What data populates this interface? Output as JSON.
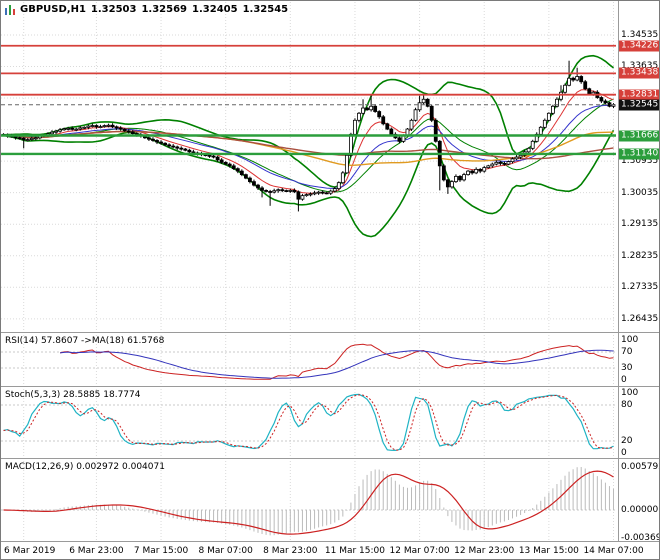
{
  "header": {
    "symbol": "GBPUSD,H1",
    "open": "1.32503",
    "high": "1.32569",
    "low": "1.32405",
    "close": "1.32545"
  },
  "indicator_labels": {
    "rsi": "RSI(14) 57.8607 ->MA(18) 61.5768",
    "stoch": "Stoch(5,3,3) 28.5885 18.7774",
    "macd": "MACD(12,26,9) 0.002972 0.004071"
  },
  "price_scale": {
    "ticks": [
      {
        "price": 1.34535,
        "label": "1.34535"
      },
      {
        "price": 1.33635,
        "label": "1.33635"
      },
      {
        "price": 1.30935,
        "label": "1.30935"
      },
      {
        "price": 1.30035,
        "label": "1.30035"
      },
      {
        "price": 1.29135,
        "label": "1.29135"
      },
      {
        "price": 1.28235,
        "label": "1.28235"
      },
      {
        "price": 1.27335,
        "label": "1.27335"
      },
      {
        "price": 1.26435,
        "label": "1.26435"
      }
    ],
    "hidden_grid": [
      1.32735,
      1.31835
    ],
    "badges": [
      {
        "price": 1.34226,
        "label": "1.34226",
        "role": "resistance"
      },
      {
        "price": 1.33438,
        "label": "1.33438",
        "role": "resistance"
      },
      {
        "price": 1.32831,
        "label": "1.32831",
        "role": "resistance"
      },
      {
        "price": 1.32545,
        "label": "1.32545",
        "role": "current"
      },
      {
        "price": 1.31666,
        "label": "1.31666",
        "role": "support"
      },
      {
        "price": 1.3114,
        "label": "1.31140",
        "role": "support"
      }
    ]
  },
  "indicator_scales": {
    "rsi": [
      "100",
      "70",
      "30",
      "0"
    ],
    "stoch": [
      "100",
      "80",
      "20",
      "0"
    ],
    "macd": [
      "0.005792",
      "0.00000",
      "-0.003698"
    ]
  },
  "time_axis": [
    {
      "i": 5,
      "label": "6 Mar 2019"
    },
    {
      "i": 23,
      "label": "6 Mar 23:00"
    },
    {
      "i": 39,
      "label": "7 Mar 15:00"
    },
    {
      "i": 55,
      "label": "8 Mar 07:00"
    },
    {
      "i": 71,
      "label": "8 Mar 23:00"
    },
    {
      "i": 87,
      "label": "11 Mar 15:00"
    },
    {
      "i": 103,
      "label": "12 Mar 07:00"
    },
    {
      "i": 119,
      "label": "12 Mar 23:00"
    },
    {
      "i": 135,
      "label": "13 Mar 15:00"
    },
    {
      "i": 151,
      "label": "14 Mar 07:00"
    }
  ],
  "colors": {
    "resistance": "#d6403a",
    "support": "#2b9e3c",
    "current_badge": "#111111",
    "bollinger": "#008000",
    "candle": "#000000",
    "grid": "#dadada",
    "rsi": "#cc2222",
    "rsi_ma": "#3333bb",
    "stoch_k": "#1fb3c4",
    "stoch_d": "#cc2222",
    "macd_hist": "#bbbbbb",
    "macd_signal": "#cc2222",
    "ma_fast": "#dd3333",
    "ma_mid": "#3333cc",
    "ma_slow1": "#e09a20",
    "ma_slow2": "#aa5040"
  },
  "chart_data": {
    "type": "candlestick",
    "title": "GBPUSD,H1",
    "timeframe": "H1",
    "ohlc_current": {
      "open": 1.32503,
      "high": 1.32569,
      "low": 1.32405,
      "close": 1.32545
    },
    "y_range": [
      1.2606,
      1.35475
    ],
    "first_open": 1.317,
    "closes": [
      1.3168,
      1.31655,
      1.3164,
      1.31605,
      1.3159,
      1.31545,
      1.3155,
      1.31585,
      1.316,
      1.3165,
      1.3168,
      1.31715,
      1.3176,
      1.3179,
      1.3183,
      1.3186,
      1.3187,
      1.31845,
      1.3185,
      1.31885,
      1.319,
      1.31935,
      1.3195,
      1.31915,
      1.3192,
      1.3195,
      1.3196,
      1.31915,
      1.3188,
      1.31845,
      1.318,
      1.3177,
      1.3172,
      1.3169,
      1.3165,
      1.316,
      1.3156,
      1.31525,
      1.3148,
      1.31445,
      1.314,
      1.31365,
      1.3134,
      1.31305,
      1.3128,
      1.31245,
      1.312,
      1.3117,
      1.3115,
      1.3112,
      1.311,
      1.3108,
      1.3105,
      1.3097,
      1.309,
      1.3085,
      1.308,
      1.3072,
      1.3065,
      1.3055,
      1.3045,
      1.3035,
      1.3025,
      1.3017,
      1.301,
      1.3007,
      1.3005,
      1.3009,
      1.3012,
      1.30095,
      1.3008,
      1.301,
      1.3006,
      1.2985,
      1.2995,
      1.2998,
      1.3,
      1.3003,
      1.3005,
      1.3003,
      1.3002,
      1.3008,
      1.3015,
      1.3032,
      1.306,
      1.311,
      1.317,
      1.321,
      1.323,
      1.3245,
      1.324,
      1.325,
      1.3235,
      1.322,
      1.32,
      1.3185,
      1.317,
      1.316,
      1.315,
      1.3165,
      1.3185,
      1.321,
      1.324,
      1.326,
      1.327,
      1.325,
      1.321,
      1.315,
      1.308,
      1.304,
      1.302,
      1.3035,
      1.305,
      1.304,
      1.3055,
      1.3065,
      1.306,
      1.307,
      1.3065,
      1.3075,
      1.308,
      1.3085,
      1.309,
      1.3087,
      1.3085,
      1.3092,
      1.31,
      1.3105,
      1.311,
      1.312,
      1.313,
      1.315,
      1.317,
      1.319,
      1.321,
      1.323,
      1.325,
      1.327,
      1.329,
      1.331,
      1.333,
      1.3325,
      1.3335,
      1.332,
      1.33,
      1.3285,
      1.329,
      1.3275,
      1.3265,
      1.326,
      1.325,
      1.32545
    ],
    "wicks": {
      "5": {
        "low": 1.313
      },
      "64": {
        "low": 1.299
      },
      "66": {
        "low": 1.2966
      },
      "73": {
        "low": 1.295
      },
      "89": {
        "high": 1.327
      },
      "91": {
        "high": 1.3285
      },
      "103": {
        "high": 1.328
      },
      "104": {
        "high": 1.3283
      },
      "108": {
        "low": 1.301
      },
      "110": {
        "low": 1.3
      },
      "138": {
        "high": 1.331
      },
      "140": {
        "high": 1.338
      },
      "142": {
        "high": 1.336
      }
    },
    "horizontal_lines": [
      {
        "price": 1.34226,
        "role": "resistance"
      },
      {
        "price": 1.33438,
        "role": "resistance"
      },
      {
        "price": 1.32831,
        "role": "resistance"
      },
      {
        "price": 1.31666,
        "role": "support"
      },
      {
        "price": 1.3114,
        "role": "support"
      }
    ],
    "current_price": 1.32545,
    "rsi_levels": [
      70,
      30
    ],
    "stoch_levels": [
      80,
      20
    ],
    "indicators": {
      "bollinger": {
        "period": 20,
        "deviation": 2
      },
      "moving_averages": [
        {
          "type": "ema",
          "period": 8,
          "color_key": "ma_fast"
        },
        {
          "type": "ema",
          "period": 20,
          "color_key": "ma_mid"
        },
        {
          "type": "sma",
          "period": 60,
          "color_key": "ma_slow1"
        },
        {
          "type": "sma",
          "period": 96,
          "color_key": "ma_slow2"
        }
      ],
      "rsi": {
        "period": 14,
        "value": 57.8607,
        "ma_period": 18,
        "ma_value": 61.5768
      },
      "stochastic": {
        "k": 5,
        "d": 3,
        "slowing": 3,
        "k_value": 28.5885,
        "d_value": 18.7774
      },
      "macd": {
        "fast": 12,
        "slow": 26,
        "signal": 9,
        "main_value": 0.002972,
        "signal_value": 0.004071
      }
    }
  }
}
